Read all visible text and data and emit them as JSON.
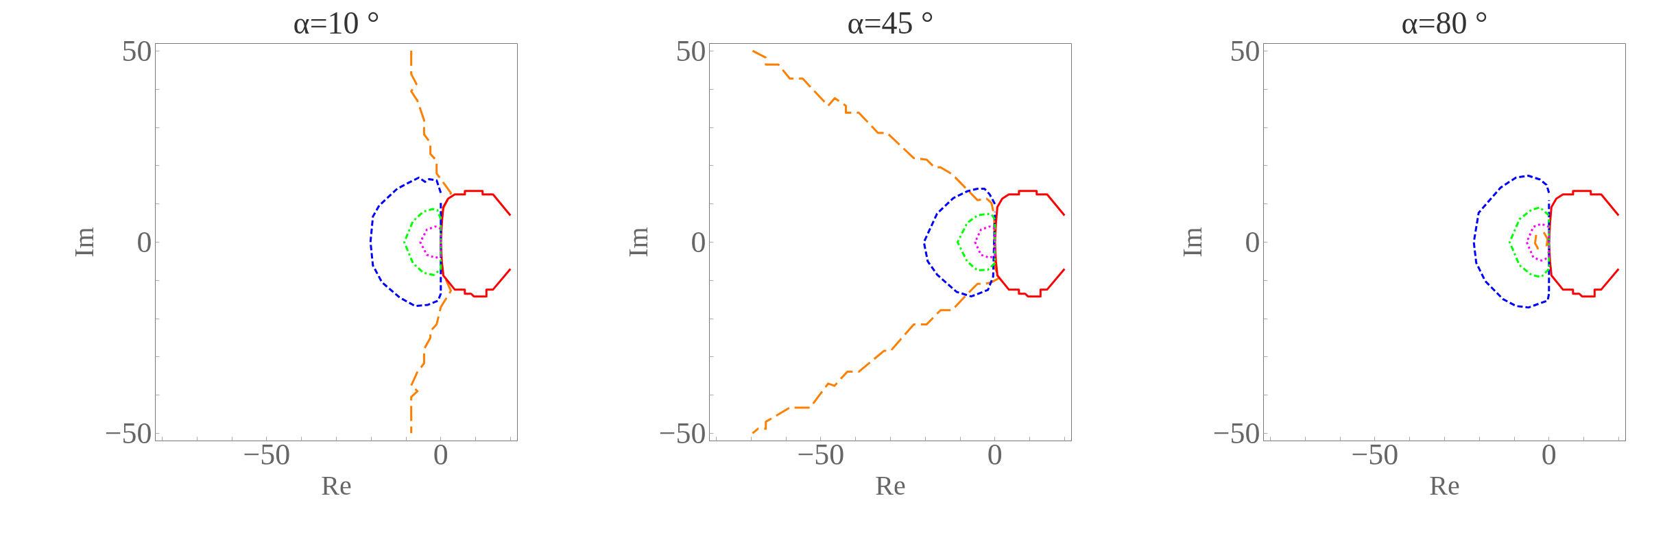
{
  "chart_data": [
    {
      "type": "line",
      "title": "α=10 °",
      "xlabel": "Re",
      "ylabel": "Im",
      "xlim": [
        -82,
        22
      ],
      "ylim": [
        -52,
        52
      ],
      "xticks": [
        {
          "value": -80,
          "label": null
        },
        {
          "value": -70,
          "label": null
        },
        {
          "value": -60,
          "label": null
        },
        -50,
        {
          "value": -40,
          "label": null
        },
        {
          "value": -30,
          "label": null
        },
        {
          "value": -20,
          "label": null
        },
        {
          "value": -10,
          "label": null
        },
        0,
        {
          "value": 10,
          "label": null
        },
        {
          "value": 20,
          "label": null
        }
      ],
      "yticks": [
        -50,
        {
          "value": -40,
          "label": null
        },
        {
          "value": -30,
          "label": null
        },
        {
          "value": -20,
          "label": null
        },
        {
          "value": -10,
          "label": null
        },
        0,
        {
          "value": 10,
          "label": null
        },
        {
          "value": 20,
          "label": null
        },
        {
          "value": 30,
          "label": null
        },
        {
          "value": 40,
          "label": null
        },
        50
      ],
      "series": [
        {
          "color": "#ff0000",
          "line_style": "solid",
          "x": [
            20,
            15,
            12,
            12,
            6.9,
            6.9,
            4,
            2.1,
            0.7,
            0.3,
            0,
            0.3,
            0.7,
            4,
            6.9,
            6.9,
            8.7,
            9.5,
            13.1,
            13.1,
            15,
            20
          ],
          "values": [
            7,
            12.5,
            12.5,
            13.4,
            13.4,
            12.5,
            12.5,
            11.4,
            9.2,
            5,
            0,
            -5,
            -8.7,
            -12.4,
            -12.4,
            -13.5,
            -13.5,
            -14.2,
            -14.2,
            -12.4,
            -12.4,
            -7
          ]
        },
        {
          "color": "#0000ff",
          "line_style": "dashed",
          "x": [
            0,
            -1.2,
            -3.4,
            -4.5,
            -6.3,
            -9.6,
            -12.5,
            -17.7,
            -19.5,
            -20.2,
            -19.5,
            -16.9,
            -11.8,
            -7.4,
            -3.7,
            -0.8,
            0,
            0
          ],
          "values": [
            12.9,
            16.2,
            16.5,
            15.8,
            16.9,
            15.4,
            14,
            9.6,
            6.7,
            0,
            -6.1,
            -10.5,
            -14.5,
            -16.7,
            -16.4,
            -15.3,
            -13.5,
            11
          ]
        },
        {
          "color": "#00ff00",
          "line_style": "dashdot",
          "x": [
            0,
            -1,
            -2.3,
            -5,
            -8,
            -10.5,
            -8,
            -5,
            -2,
            0,
            0
          ],
          "values": [
            6,
            8.4,
            8.7,
            8,
            5.5,
            0,
            -5.5,
            -8,
            -8.6,
            -7,
            5
          ]
        },
        {
          "color": "#ff00ff",
          "line_style": "dotted",
          "x": [
            0,
            -1.5,
            -4,
            -5.9,
            -4,
            -1.5,
            0,
            0
          ],
          "values": [
            3.5,
            4.1,
            3.3,
            0,
            -3.3,
            -4.1,
            -3.5,
            2.5
          ]
        },
        {
          "color": "#ff8000",
          "line_style": "longdash",
          "x": [
            -8.5,
            -8.5,
            -7,
            -8.5,
            -6.7,
            -4.8,
            -4.8,
            -3,
            -3,
            -1.2,
            -1.2,
            2.9,
            0.7,
            0,
            0,
            0.7,
            2.9,
            0,
            -1.2,
            -3,
            -3,
            -4.8,
            -4.8,
            -6.7,
            -8.5,
            -6.7,
            -8.5,
            -8.5
          ],
          "values": [
            50.1,
            44,
            41.4,
            39.5,
            37,
            31.9,
            28.2,
            26,
            23.1,
            21.3,
            18,
            12.9,
            8.8,
            4,
            -4,
            -8.3,
            -12.7,
            -17,
            -21.5,
            -23.3,
            -25,
            -28,
            -31.7,
            -33.9,
            -37.5,
            -39,
            -40.5,
            -50
          ]
        }
      ]
    },
    {
      "type": "line",
      "title": "α=45 °",
      "xlabel": "Re",
      "ylabel": "Im",
      "xlim": [
        -82,
        22
      ],
      "ylim": [
        -52,
        52
      ],
      "xticks": [
        {
          "value": -80,
          "label": null
        },
        {
          "value": -70,
          "label": null
        },
        {
          "value": -60,
          "label": null
        },
        -50,
        {
          "value": -40,
          "label": null
        },
        {
          "value": -30,
          "label": null
        },
        {
          "value": -20,
          "label": null
        },
        {
          "value": -10,
          "label": null
        },
        0,
        {
          "value": 10,
          "label": null
        },
        {
          "value": 20,
          "label": null
        }
      ],
      "yticks": [
        -50,
        {
          "value": -40,
          "label": null
        },
        {
          "value": -30,
          "label": null
        },
        {
          "value": -20,
          "label": null
        },
        {
          "value": -10,
          "label": null
        },
        0,
        {
          "value": 10,
          "label": null
        },
        {
          "value": 20,
          "label": null
        },
        {
          "value": 30,
          "label": null
        },
        {
          "value": 40,
          "label": null
        },
        50
      ],
      "series": [
        {
          "color": "#ff0000",
          "line_style": "solid",
          "x": [
            20,
            15,
            12,
            12,
            6.9,
            6.9,
            4,
            2.1,
            0.7,
            0.3,
            0,
            0.3,
            0.7,
            4,
            6.9,
            6.9,
            8.7,
            9.5,
            13.1,
            13.1,
            15,
            20
          ],
          "values": [
            7,
            12.5,
            12.5,
            13.4,
            13.4,
            12.5,
            12.5,
            11.4,
            9.2,
            5,
            0,
            -5,
            -8.7,
            -12.4,
            -12.4,
            -13.5,
            -13.5,
            -14.2,
            -14.2,
            -12.4,
            -12.4,
            -7
          ]
        },
        {
          "color": "#0000ff",
          "line_style": "dashed",
          "x": [
            0,
            -1.5,
            -3,
            -5,
            -8,
            -12,
            -16.6,
            -20.4,
            -19.3,
            -16.6,
            -11,
            -6.8,
            -2,
            -0.5,
            0
          ],
          "values": [
            10,
            12.5,
            14,
            14,
            13.3,
            11.5,
            7.5,
            0,
            -5,
            -8.5,
            -13,
            -14.2,
            -12.5,
            -9,
            8
          ]
        },
        {
          "color": "#00ff00",
          "line_style": "dashdot",
          "x": [
            0,
            -1,
            -2.3,
            -5,
            -8,
            -10.7,
            -8,
            -5,
            -2,
            0,
            0
          ],
          "values": [
            6,
            7.3,
            7.4,
            7,
            5,
            0,
            -5,
            -7.4,
            -7.2,
            -5.5,
            5
          ]
        },
        {
          "color": "#ff00ff",
          "line_style": "dotted",
          "x": [
            0,
            -1.5,
            -4,
            -5.7,
            -4,
            -1.5,
            0,
            0
          ],
          "values": [
            3.5,
            4.1,
            3.3,
            0,
            -3.3,
            -4.1,
            -3.5,
            2.5
          ]
        },
        {
          "color": "#ff8000",
          "line_style": "longdash",
          "x": [
            -69.6,
            -65.8,
            -65.8,
            -62.2,
            -58.9,
            -55.2,
            -47.9,
            -46,
            -42.8,
            -42.8,
            -39.1,
            -33.6,
            -31,
            -23.3,
            -19.6,
            -17.4,
            -15.6,
            -12.3,
            -5,
            -2.4,
            -1,
            -0.2,
            -0.2,
            0.1,
            1.2,
            -1,
            -2.8,
            -5,
            -8.6,
            -12.3,
            -15.6,
            -19.6,
            -23.3,
            -29.9,
            -31.8,
            -39.1,
            -42.4,
            -46.1,
            -47.9,
            -53.1,
            -58.9,
            -65.8,
            -65.8,
            -68,
            -69.6
          ],
          "values": [
            50.1,
            48.3,
            46.5,
            46.5,
            42.8,
            42.8,
            35.7,
            37.7,
            35.7,
            33.9,
            33.9,
            28.6,
            28.6,
            22,
            21.6,
            19.6,
            19.6,
            17.8,
            11,
            11.4,
            10.3,
            7,
            0,
            -6.9,
            -9.4,
            -10.5,
            -10.9,
            -10.9,
            -14.2,
            -17.8,
            -17.8,
            -21.5,
            -21.5,
            -28.4,
            -28.4,
            -33.9,
            -33.9,
            -37.6,
            -37,
            -43.3,
            -43.3,
            -47,
            -48.8,
            -48.8,
            -50
          ]
        }
      ]
    },
    {
      "type": "line",
      "title": "α=80 °",
      "xlabel": "Re",
      "ylabel": "Im",
      "xlim": [
        -82,
        22
      ],
      "ylim": [
        -52,
        52
      ],
      "xticks": [
        {
          "value": -80,
          "label": null
        },
        {
          "value": -70,
          "label": null
        },
        {
          "value": -60,
          "label": null
        },
        -50,
        {
          "value": -40,
          "label": null
        },
        {
          "value": -30,
          "label": null
        },
        {
          "value": -20,
          "label": null
        },
        {
          "value": -10,
          "label": null
        },
        0,
        {
          "value": 10,
          "label": null
        },
        {
          "value": 20,
          "label": null
        }
      ],
      "yticks": [
        -50,
        {
          "value": -40,
          "label": null
        },
        {
          "value": -30,
          "label": null
        },
        {
          "value": -20,
          "label": null
        },
        {
          "value": -10,
          "label": null
        },
        0,
        {
          "value": 10,
          "label": null
        },
        {
          "value": 20,
          "label": null
        },
        {
          "value": 30,
          "label": null
        },
        {
          "value": 40,
          "label": null
        },
        50
      ],
      "series": [
        {
          "color": "#ff0000",
          "line_style": "solid",
          "x": [
            20,
            15,
            12,
            12,
            6.9,
            6.9,
            4,
            2.1,
            0.7,
            0.3,
            0,
            0.3,
            0.7,
            4,
            6.9,
            6.9,
            8.7,
            9.5,
            13.1,
            13.1,
            15,
            20
          ],
          "values": [
            7,
            12.5,
            12.5,
            13.4,
            13.4,
            12.5,
            12.5,
            11.4,
            9.2,
            5,
            0,
            -5,
            -8.7,
            -12.4,
            -12.4,
            -13.5,
            -13.5,
            -14.2,
            -14.2,
            -12.4,
            -12.4,
            -7
          ]
        },
        {
          "color": "#0000ff",
          "line_style": "dashed",
          "x": [
            0,
            -0.7,
            -2.6,
            -5.9,
            -9.5,
            -13.9,
            -20.2,
            -21.6,
            -20.9,
            -18.3,
            -13.2,
            -9.5,
            -5.9,
            -2.6,
            -0.4,
            0,
            0
          ],
          "values": [
            12.9,
            15,
            16.4,
            17.4,
            16.9,
            14.3,
            7.7,
            0,
            -5.4,
            -10.2,
            -14.9,
            -16.7,
            -17.1,
            -16,
            -15.3,
            -13.5,
            11
          ]
        },
        {
          "color": "#00ff00",
          "line_style": "dashdot",
          "x": [
            0,
            -2.6,
            -5,
            -8.5,
            -11.3,
            -8.5,
            -5,
            -2.2,
            0,
            0
          ],
          "values": [
            7,
            9.1,
            8.5,
            6,
            0,
            -6,
            -8.6,
            -9.1,
            -7,
            6
          ]
        },
        {
          "color": "#ff00ff",
          "line_style": "dotted",
          "x": [
            0,
            -2.2,
            -4.5,
            -6.4,
            -4.5,
            -2.2,
            0,
            0
          ],
          "values": [
            4,
            4.8,
            4,
            0,
            -4,
            -4.8,
            -4,
            3
          ]
        },
        {
          "color": "#ff8000",
          "line_style": "longdash",
          "x": [
            -3.7,
            -4,
            -3.3,
            -2.9,
            null,
            -1.5,
            -0.4,
            -0.7,
            0
          ],
          "values": [
            1.9,
            -0.3,
            -1.4,
            -2.9,
            null,
            2.6,
            0.8,
            -1,
            -3.2
          ]
        }
      ]
    }
  ]
}
